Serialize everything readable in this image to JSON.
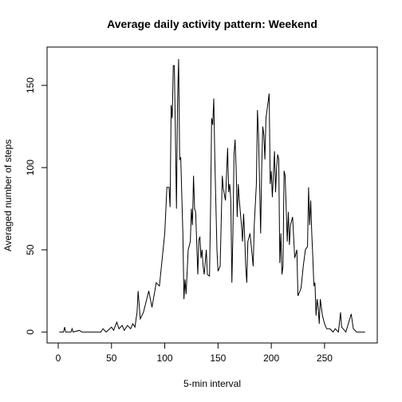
{
  "chart_data": {
    "type": "line",
    "title": "Average daily activity pattern: Weekend",
    "x_label": "5-min interval",
    "y_label": "Averaged number of steps",
    "color": "#000000",
    "x": [
      1,
      5,
      6,
      7,
      12,
      13,
      14,
      20,
      22,
      40,
      42,
      45,
      50,
      52,
      55,
      57,
      60,
      62,
      65,
      68,
      70,
      72,
      74,
      75,
      77,
      80,
      85,
      88,
      92,
      95,
      100,
      102,
      104,
      105,
      106,
      107,
      108,
      109,
      110,
      111,
      112,
      113,
      114,
      115,
      117,
      118,
      119,
      120,
      122,
      124,
      125,
      126,
      127,
      128,
      129,
      131,
      132,
      133,
      134,
      135,
      136,
      137,
      139,
      140,
      142,
      143,
      144,
      145,
      146,
      147,
      149,
      150,
      152,
      154,
      155,
      157,
      159,
      160,
      161,
      162,
      163,
      164,
      165,
      166,
      167,
      168,
      169,
      170,
      172,
      173,
      174,
      175,
      176,
      177,
      178,
      180,
      182,
      183,
      184,
      186,
      187,
      188,
      190,
      191,
      192,
      193,
      194,
      195,
      197,
      198,
      199,
      200,
      201,
      202,
      203,
      204,
      205,
      206,
      207,
      208,
      209,
      210,
      211,
      212,
      213,
      215,
      216,
      217,
      218,
      220,
      222,
      224,
      225,
      227,
      228,
      230,
      232,
      234,
      235,
      236,
      237,
      238,
      239,
      240,
      241,
      242,
      243,
      244,
      245,
      246,
      248,
      250,
      252,
      255,
      258,
      260,
      263,
      265,
      266,
      270,
      275,
      277,
      280,
      288
    ],
    "values": [
      0,
      0,
      3,
      0,
      0,
      2,
      0,
      1,
      0,
      0,
      2,
      0,
      3,
      1,
      6,
      2,
      4,
      1,
      4,
      2,
      5,
      3,
      12,
      25,
      8,
      12,
      25,
      15,
      30,
      28,
      60,
      88,
      88,
      76,
      138,
      130,
      162,
      162,
      120,
      75,
      140,
      166,
      105,
      106,
      60,
      20,
      32,
      23,
      50,
      55,
      75,
      65,
      95,
      75,
      73,
      35,
      56,
      58,
      45,
      50,
      40,
      35,
      50,
      35,
      34,
      75,
      130,
      126,
      142,
      105,
      50,
      37,
      40,
      95,
      87,
      80,
      112,
      85,
      90,
      80,
      30,
      60,
      108,
      117,
      100,
      70,
      90,
      80,
      65,
      55,
      72,
      58,
      40,
      30,
      55,
      60,
      47,
      40,
      65,
      90,
      135,
      120,
      60,
      100,
      125,
      120,
      105,
      130,
      140,
      145,
      90,
      98,
      82,
      96,
      110,
      85,
      100,
      108,
      105,
      42,
      60,
      35,
      40,
      98,
      95,
      55,
      73,
      53,
      65,
      70,
      45,
      50,
      22,
      25,
      27,
      40,
      50,
      52,
      88,
      65,
      80,
      60,
      45,
      28,
      30,
      10,
      20,
      15,
      5,
      20,
      10,
      5,
      2,
      2,
      0,
      2,
      0,
      12,
      3,
      0,
      11,
      2,
      0,
      0
    ],
    "xlim": [
      -10.48,
      299.48
    ],
    "ylim": [
      -6.66,
      173.3
    ],
    "xticks": [
      0,
      50,
      100,
      150,
      200,
      250
    ],
    "yticks": [
      0,
      50,
      100,
      150
    ]
  }
}
